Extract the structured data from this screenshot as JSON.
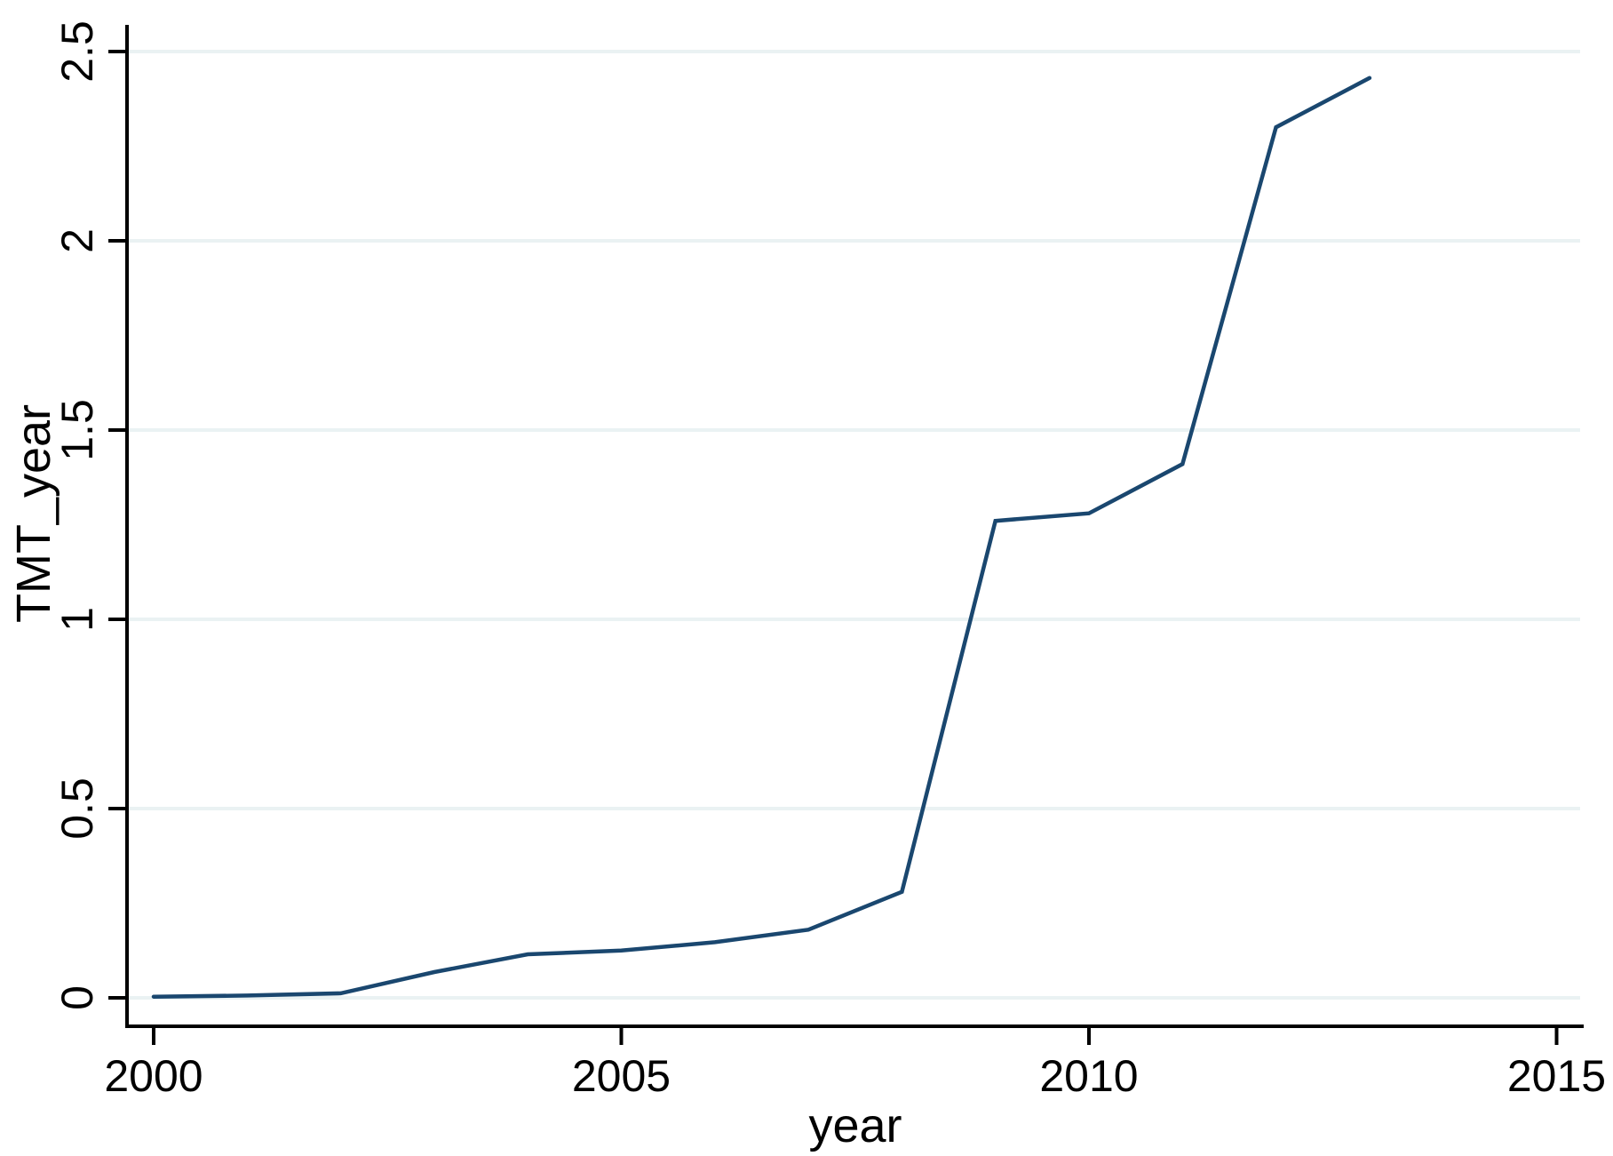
{
  "figure": {
    "background": "#ffffff"
  },
  "chart_data": {
    "type": "line",
    "title": "",
    "xlabel": "year",
    "ylabel": "TMT_year",
    "x": [
      2000,
      2001,
      2002,
      2003,
      2004,
      2005,
      2006,
      2007,
      2008,
      2009,
      2010,
      2011,
      2012,
      2013
    ],
    "series": [
      {
        "name": "TMT_year",
        "values": [
          0.003,
          0.006,
          0.012,
          0.068,
          0.115,
          0.125,
          0.147,
          0.18,
          0.28,
          1.26,
          1.28,
          1.41,
          2.3,
          2.43
        ],
        "color": "#1a476f"
      }
    ],
    "xlim": [
      1999.7,
      2015.3
    ],
    "ylim": [
      0,
      2.5
    ],
    "xticks": {
      "values": [
        2000,
        2005,
        2010,
        2015
      ],
      "labels": [
        "2000",
        "2005",
        "2010",
        "2015"
      ]
    },
    "yticks": {
      "values": [
        0,
        0.5,
        1,
        1.5,
        2,
        2.5
      ],
      "labels": [
        "0",
        "0.5",
        "1",
        "1.5",
        "2",
        "2.5"
      ]
    },
    "grid": "horizontal",
    "grid_color": "#eaf2f3",
    "axis_color": "#000000",
    "line_width": 4.5,
    "legend": "none"
  }
}
